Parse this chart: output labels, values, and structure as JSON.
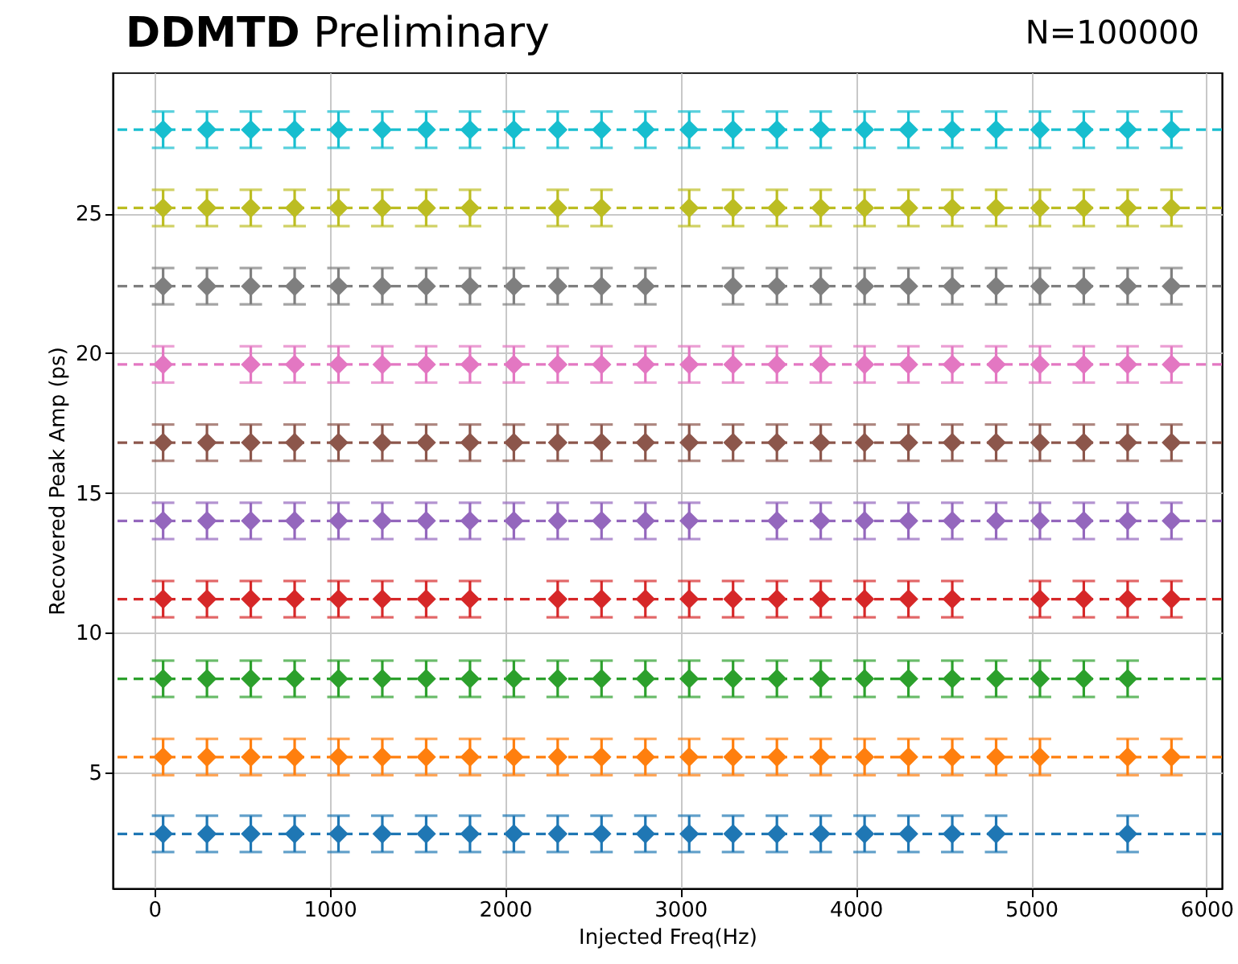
{
  "chart_data": {
    "type": "scatter",
    "title": "DDMTD Preliminary",
    "xlabel": "Injected Freq(Hz)",
    "ylabel": "Recovered Peak Amp (ps)",
    "annotations": [
      "N=100000"
    ],
    "x": [
      50,
      300,
      550,
      800,
      1050,
      1300,
      1550,
      1800,
      2050,
      2300,
      2550,
      2800,
      3050,
      3300,
      3550,
      3800,
      4050,
      4300,
      4550,
      4800,
      5050,
      5300,
      5550,
      5800
    ],
    "series": [
      {
        "color": "#1f77b4",
        "values": [
          2.8,
          2.8,
          2.8,
          2.8,
          2.8,
          2.8,
          2.8,
          2.8,
          2.8,
          2.8,
          2.8,
          2.8,
          2.8,
          2.8,
          2.8,
          2.8,
          2.8,
          2.8,
          2.8,
          2.8,
          null,
          null,
          2.8,
          null
        ],
        "errors": [
          0.65,
          0.65,
          0.65,
          0.65,
          0.65,
          0.65,
          0.65,
          0.65,
          0.65,
          0.65,
          0.65,
          0.65,
          0.65,
          0.65,
          0.65,
          0.65,
          0.65,
          0.65,
          0.65,
          0.65,
          null,
          null,
          0.65,
          null
        ]
      },
      {
        "color": "#ff7f0e",
        "values": [
          5.55,
          5.55,
          5.55,
          5.55,
          5.55,
          5.55,
          5.55,
          5.55,
          5.55,
          5.55,
          5.55,
          5.55,
          5.55,
          5.55,
          5.55,
          5.55,
          5.55,
          5.55,
          5.55,
          5.55,
          5.55,
          null,
          5.55,
          5.55
        ],
        "errors": [
          0.65,
          0.65,
          0.65,
          0.65,
          0.65,
          0.65,
          0.65,
          0.65,
          0.65,
          0.65,
          0.65,
          0.65,
          0.65,
          0.65,
          0.65,
          0.65,
          0.65,
          0.65,
          0.65,
          0.65,
          0.65,
          null,
          0.65,
          0.65
        ]
      },
      {
        "color": "#2ca02c",
        "values": [
          8.35,
          8.35,
          8.35,
          8.35,
          8.35,
          8.35,
          8.35,
          8.35,
          8.35,
          8.35,
          8.35,
          8.35,
          8.35,
          8.35,
          8.35,
          8.35,
          8.35,
          8.35,
          8.35,
          8.35,
          8.35,
          8.35,
          8.35,
          null
        ],
        "errors": [
          0.65,
          0.65,
          0.65,
          0.65,
          0.65,
          0.65,
          0.65,
          0.65,
          0.65,
          0.65,
          0.65,
          0.65,
          0.65,
          0.65,
          0.65,
          0.65,
          0.65,
          0.65,
          0.65,
          0.65,
          0.65,
          0.65,
          0.65,
          null
        ]
      },
      {
        "color": "#d62728",
        "values": [
          11.2,
          11.2,
          11.2,
          11.2,
          11.2,
          11.2,
          11.2,
          11.2,
          null,
          11.2,
          11.2,
          11.2,
          11.2,
          11.2,
          11.2,
          11.2,
          11.2,
          11.2,
          11.2,
          null,
          11.2,
          11.2,
          11.2,
          11.2
        ],
        "errors": [
          0.65,
          0.65,
          0.65,
          0.65,
          0.65,
          0.65,
          0.65,
          0.65,
          null,
          0.65,
          0.65,
          0.65,
          0.65,
          0.65,
          0.65,
          0.65,
          0.65,
          0.65,
          0.65,
          null,
          0.65,
          0.65,
          0.65,
          0.65
        ]
      },
      {
        "color": "#9467bd",
        "values": [
          14.0,
          14.0,
          14.0,
          14.0,
          14.0,
          14.0,
          14.0,
          14.0,
          14.0,
          14.0,
          14.0,
          14.0,
          14.0,
          null,
          14.0,
          14.0,
          14.0,
          14.0,
          14.0,
          14.0,
          14.0,
          14.0,
          14.0,
          14.0
        ],
        "errors": [
          0.65,
          0.65,
          0.65,
          0.65,
          0.65,
          0.65,
          0.65,
          0.65,
          0.65,
          0.65,
          0.65,
          0.65,
          0.65,
          null,
          0.65,
          0.65,
          0.65,
          0.65,
          0.65,
          0.65,
          0.65,
          0.65,
          0.65,
          0.65
        ]
      },
      {
        "color": "#8c564b",
        "values": [
          16.8,
          16.8,
          16.8,
          16.8,
          16.8,
          16.8,
          16.8,
          16.8,
          16.8,
          16.8,
          16.8,
          16.8,
          16.8,
          16.8,
          16.8,
          16.8,
          16.8,
          16.8,
          16.8,
          16.8,
          16.8,
          16.8,
          16.8,
          16.8
        ],
        "errors": [
          0.65,
          0.65,
          0.65,
          0.65,
          0.65,
          0.65,
          0.65,
          0.65,
          0.65,
          0.65,
          0.65,
          0.65,
          0.65,
          0.65,
          0.65,
          0.65,
          0.65,
          0.65,
          0.65,
          0.65,
          0.65,
          0.65,
          0.65,
          0.65
        ]
      },
      {
        "color": "#e377c2",
        "values": [
          19.6,
          null,
          19.6,
          19.6,
          19.6,
          19.6,
          19.6,
          19.6,
          19.6,
          19.6,
          19.6,
          19.6,
          19.6,
          19.6,
          19.6,
          19.6,
          19.6,
          19.6,
          19.6,
          19.6,
          19.6,
          19.6,
          19.6,
          19.6
        ],
        "errors": [
          0.65,
          null,
          0.65,
          0.65,
          0.65,
          0.65,
          0.65,
          0.65,
          0.65,
          0.65,
          0.65,
          0.65,
          0.65,
          0.65,
          0.65,
          0.65,
          0.65,
          0.65,
          0.65,
          0.65,
          0.65,
          0.65,
          0.65,
          0.65
        ]
      },
      {
        "color": "#7f7f7f",
        "values": [
          22.4,
          22.4,
          22.4,
          22.4,
          22.4,
          22.4,
          22.4,
          22.4,
          22.4,
          22.4,
          22.4,
          22.4,
          null,
          22.4,
          22.4,
          22.4,
          22.4,
          22.4,
          22.4,
          22.4,
          22.4,
          22.4,
          22.4,
          22.4
        ],
        "errors": [
          0.65,
          0.65,
          0.65,
          0.65,
          0.65,
          0.65,
          0.65,
          0.65,
          0.65,
          0.65,
          0.65,
          0.65,
          null,
          0.65,
          0.65,
          0.65,
          0.65,
          0.65,
          0.65,
          0.65,
          0.65,
          0.65,
          0.65,
          0.65
        ]
      },
      {
        "color": "#bcbd22",
        "values": [
          25.2,
          25.2,
          25.2,
          25.2,
          25.2,
          25.2,
          25.2,
          25.2,
          null,
          25.2,
          25.2,
          null,
          25.2,
          25.2,
          25.2,
          25.2,
          25.2,
          25.2,
          25.2,
          25.2,
          25.2,
          25.2,
          25.2,
          25.2
        ],
        "errors": [
          0.65,
          0.65,
          0.65,
          0.65,
          0.65,
          0.65,
          0.65,
          0.65,
          null,
          0.65,
          0.65,
          null,
          0.65,
          0.65,
          0.65,
          0.65,
          0.65,
          0.65,
          0.65,
          0.65,
          0.65,
          0.65,
          0.65,
          0.65
        ]
      },
      {
        "color": "#17becf",
        "values": [
          28.0,
          28.0,
          28.0,
          28.0,
          28.0,
          28.0,
          28.0,
          28.0,
          28.0,
          28.0,
          28.0,
          28.0,
          28.0,
          28.0,
          28.0,
          28.0,
          28.0,
          28.0,
          28.0,
          28.0,
          28.0,
          28.0,
          28.0,
          28.0
        ],
        "errors": [
          0.65,
          0.65,
          0.65,
          0.65,
          0.65,
          0.65,
          0.65,
          0.65,
          0.65,
          0.65,
          0.65,
          0.65,
          0.65,
          0.65,
          0.65,
          0.65,
          0.65,
          0.65,
          0.65,
          0.65,
          0.65,
          0.65,
          0.65,
          0.65
        ]
      }
    ],
    "ref_lines": [
      {
        "axis": "y",
        "value": 2.8,
        "color": "#1f77b4",
        "line_style": "dashed"
      },
      {
        "axis": "y",
        "value": 5.55,
        "color": "#ff7f0e",
        "line_style": "dashed"
      },
      {
        "axis": "y",
        "value": 8.35,
        "color": "#2ca02c",
        "line_style": "dashed"
      },
      {
        "axis": "y",
        "value": 11.2,
        "color": "#d62728",
        "line_style": "dashed"
      },
      {
        "axis": "y",
        "value": 14.0,
        "color": "#9467bd",
        "line_style": "dashed"
      },
      {
        "axis": "y",
        "value": 16.8,
        "color": "#8c564b",
        "line_style": "dashed"
      },
      {
        "axis": "y",
        "value": 19.6,
        "color": "#e377c2",
        "line_style": "dashed"
      },
      {
        "axis": "y",
        "value": 22.4,
        "color": "#7f7f7f",
        "line_style": "dashed"
      },
      {
        "axis": "y",
        "value": 25.2,
        "color": "#bcbd22",
        "line_style": "dashed"
      },
      {
        "axis": "y",
        "value": 28.0,
        "color": "#17becf",
        "line_style": "dashed"
      }
    ],
    "xlim": [
      -237.5,
      6087.5
    ],
    "ylim": [
      0.85,
      30.05
    ],
    "xticks": [
      0,
      1000,
      2000,
      3000,
      4000,
      5000,
      6000
    ],
    "yticks": [
      5,
      10,
      15,
      20,
      25
    ],
    "grid": true,
    "marker": "diamond"
  }
}
